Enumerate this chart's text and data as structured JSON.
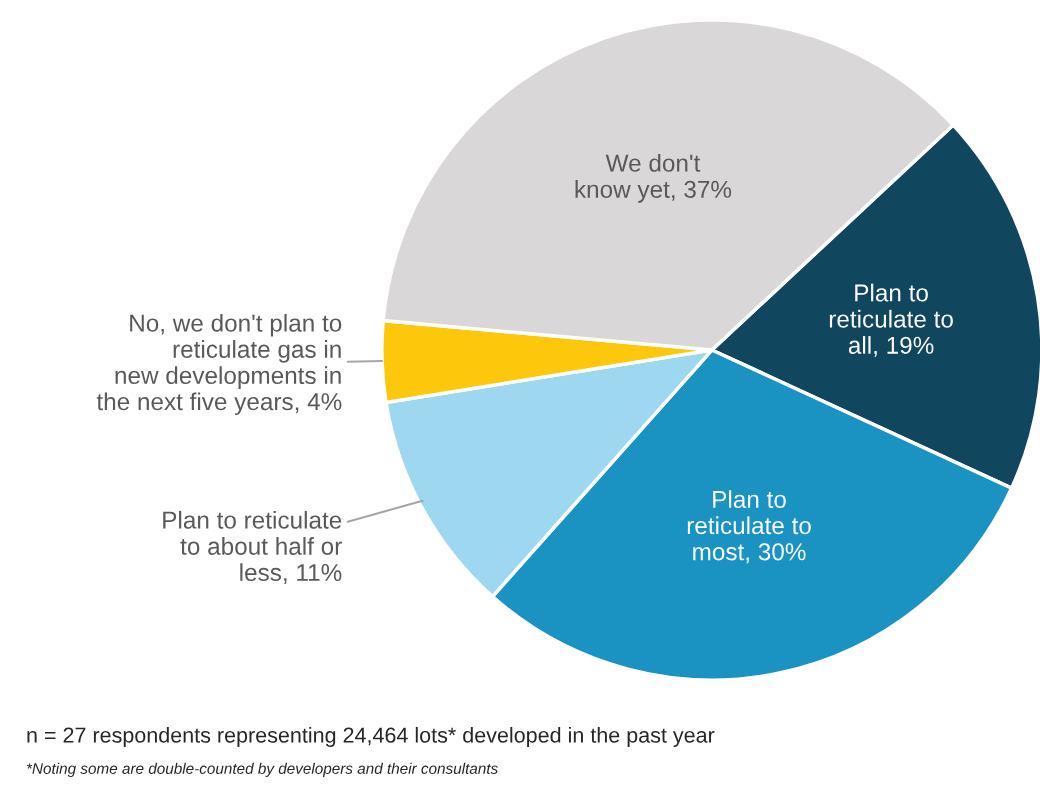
{
  "chart_data": {
    "type": "pie",
    "categories": [
      "Plan to reticulate to all",
      "Plan to reticulate to most",
      "Plan to reticulate to about half or less",
      "No, we don't plan to reticulate gas in new developments in the next five years",
      "We don't know yet"
    ],
    "values": [
      19,
      30,
      11,
      4,
      37
    ],
    "colors": [
      "#11475e",
      "#1a92c2",
      "#9dd8f0",
      "#fdc70b",
      "#d9d7d8"
    ],
    "value_labels": [
      "19%",
      "30%",
      "11%",
      "4%",
      "37%"
    ],
    "legend": false,
    "annotations": [
      "n = 27 respondents representing 24,464 lots* developed in the past year",
      "*Noting some are double-counted by developers and their consultants"
    ]
  }
}
